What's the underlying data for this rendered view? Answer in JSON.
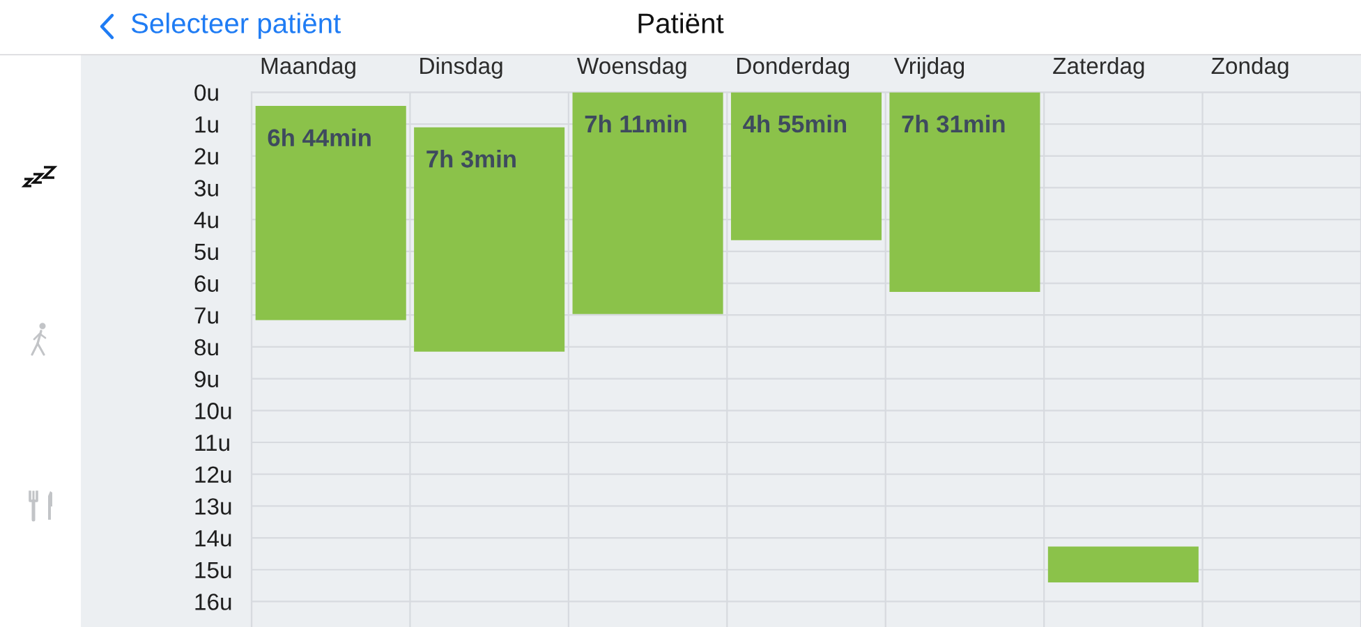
{
  "chart_data": {
    "type": "bar",
    "title": "Patiënt",
    "annotations": [
      "Selecteer patiënt",
      {
        "text": "6h 44min",
        "x": "Maandag",
        "y": 0.43
      },
      {
        "text": "7h 3min",
        "x": "Dinsdag",
        "y": 1.1
      },
      {
        "text": "7h 11min",
        "x": "Woensdag",
        "y": 0
      },
      {
        "text": "4h 55min",
        "x": "Donderdag",
        "y": 0
      },
      {
        "text": "7h 31min",
        "x": "Vrijdag",
        "y": 0
      }
    ],
    "categories": [
      "Maandag",
      "Dinsdag",
      "Woensdag",
      "Donderdag",
      "Vrijdag",
      "Zaterdag",
      "Zondag"
    ],
    "values": [
      6.73,
      7.05,
      6.97,
      4.65,
      6.27,
      1.13,
      null
    ],
    "base": [
      0.43,
      1.1,
      0,
      0,
      0,
      14.27,
      null
    ],
    "color": "#8bc24a",
    "ylim": [
      16.8,
      0
    ],
    "yticks": [
      {
        "value": 0,
        "label": "0u"
      },
      {
        "value": 1,
        "label": "1u"
      },
      {
        "value": 2,
        "label": "2u"
      },
      {
        "value": 3,
        "label": "3u"
      },
      {
        "value": 4,
        "label": "4u"
      },
      {
        "value": 5,
        "label": "5u"
      },
      {
        "value": 6,
        "label": "6u"
      },
      {
        "value": 7,
        "label": "7u"
      },
      {
        "value": 8,
        "label": "8u"
      },
      {
        "value": 9,
        "label": "9u"
      },
      {
        "value": 10,
        "label": "10u"
      },
      {
        "value": 11,
        "label": "11u"
      },
      {
        "value": 12,
        "label": "12u"
      },
      {
        "value": 13,
        "label": "13u"
      },
      {
        "value": 14,
        "label": "14u"
      },
      {
        "value": 15,
        "label": "15u"
      },
      {
        "value": 16,
        "label": "16u"
      }
    ],
    "grid": true
  }
}
